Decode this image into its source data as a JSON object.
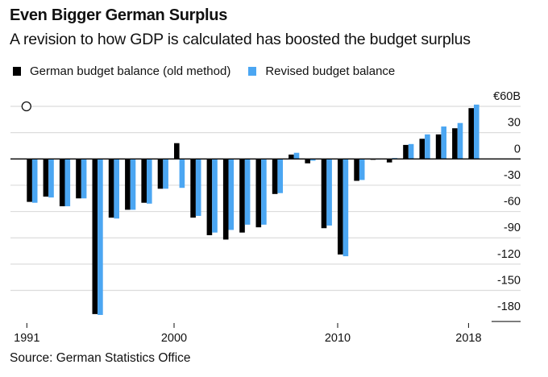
{
  "chart_data": {
    "type": "bar",
    "title": "Even Bigger German Surplus",
    "subtitle": "A revision to how GDP is calculated has boosted the budget surplus",
    "xlabel": "",
    "ylabel": "",
    "ylim": [
      -180,
      60
    ],
    "yticks": [
      60,
      30,
      0,
      -30,
      -60,
      -90,
      -120,
      -150,
      -180
    ],
    "ytick_labels": [
      "€60B",
      "30",
      "0",
      "-30",
      "-60",
      "-90",
      "-120",
      "-150",
      "-180"
    ],
    "xtick_labels": [
      "1991",
      "2000",
      "2010",
      "2018"
    ],
    "grid": true,
    "legend_position": "top-left",
    "categories": [
      "1991",
      "1992",
      "1993",
      "1994",
      "1995",
      "1996",
      "1997",
      "1998",
      "1999",
      "2000",
      "2001",
      "2002",
      "2003",
      "2004",
      "2005",
      "2006",
      "2007",
      "2008",
      "2009",
      "2010",
      "2011",
      "2012",
      "2013",
      "2014",
      "2015",
      "2016",
      "2017",
      "2018"
    ],
    "series": [
      {
        "name": "German budget balance (old method)",
        "color": "#000000",
        "values": [
          -49,
          -43,
          -54,
          -45,
          -177,
          -67,
          -58,
          -50,
          -34,
          18,
          -67,
          -87,
          -92,
          -84,
          -78,
          -40,
          5,
          -5,
          -79,
          -109,
          -25,
          -1,
          -4,
          16,
          23,
          28,
          35,
          58
        ]
      },
      {
        "name": "Revised budget balance",
        "color": "#4ba6f2",
        "values": [
          -50,
          -44,
          -54,
          -45,
          -178,
          -68,
          -58,
          -51,
          -34,
          -33,
          -65,
          -84,
          -81,
          -75,
          -75,
          -39,
          7,
          -2,
          -76,
          -111,
          -24,
          0,
          1,
          17,
          28,
          37,
          41,
          62
        ]
      }
    ],
    "annotations": [
      {
        "type": "circle-marker",
        "x": "1991",
        "y": 60
      }
    ]
  },
  "source": "Source: German Statistics Office"
}
